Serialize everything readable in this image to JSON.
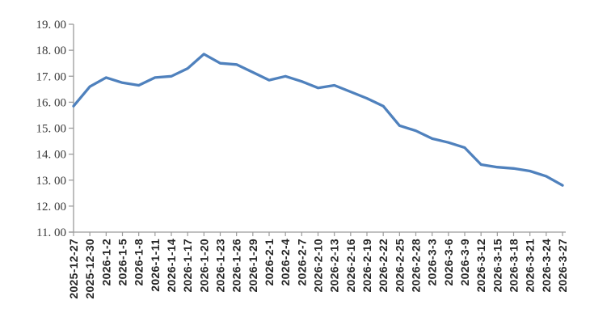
{
  "chart_data": {
    "type": "line",
    "title": "",
    "xlabel": "",
    "ylabel": "",
    "legend": "none",
    "grid": "off",
    "background": "#FFFFFF",
    "line_color": "#4F81BD",
    "axis_color": "#9C9C9C",
    "x_label_color": "#262626",
    "y_label_color": "#3A3A3A",
    "ylim": [
      11,
      19
    ],
    "y_tick_step": 1,
    "y_tick_values": [
      19,
      18,
      17,
      16,
      15,
      14,
      13,
      12,
      11
    ],
    "y_tick_labels": [
      "19. 00",
      "18. 00",
      "17. 00",
      "16. 00",
      "15. 00",
      "14. 00",
      "13. 00",
      "12. 00",
      "11. 00"
    ],
    "categories": [
      "2025-12-27",
      "2025-12-30",
      "2026-1-2",
      "2026-1-5",
      "2026-1-8",
      "2026-1-11",
      "2026-1-14",
      "2026-1-17",
      "2026-1-20",
      "2026-1-23",
      "2026-1-26",
      "2026-1-29",
      "2026-2-1",
      "2026-2-4",
      "2026-2-7",
      "2026-2-10",
      "2026-2-13",
      "2026-2-16",
      "2026-2-19",
      "2026-2-22",
      "2026-2-25",
      "2026-2-28",
      "2026-3-3",
      "2026-3-6",
      "2026-3-9",
      "2026-3-12",
      "2026-3-15",
      "2026-3-18",
      "2026-3-21",
      "2026-3-24",
      "2026-3-27"
    ],
    "values": [
      15.85,
      16.6,
      16.95,
      16.75,
      16.65,
      16.95,
      17.0,
      17.3,
      17.85,
      17.5,
      17.45,
      17.15,
      16.85,
      17.0,
      16.8,
      16.55,
      16.65,
      16.4,
      16.15,
      15.85,
      15.1,
      14.9,
      14.6,
      14.45,
      14.25,
      13.6,
      13.5,
      13.45,
      13.35,
      13.15,
      12.8
    ]
  }
}
